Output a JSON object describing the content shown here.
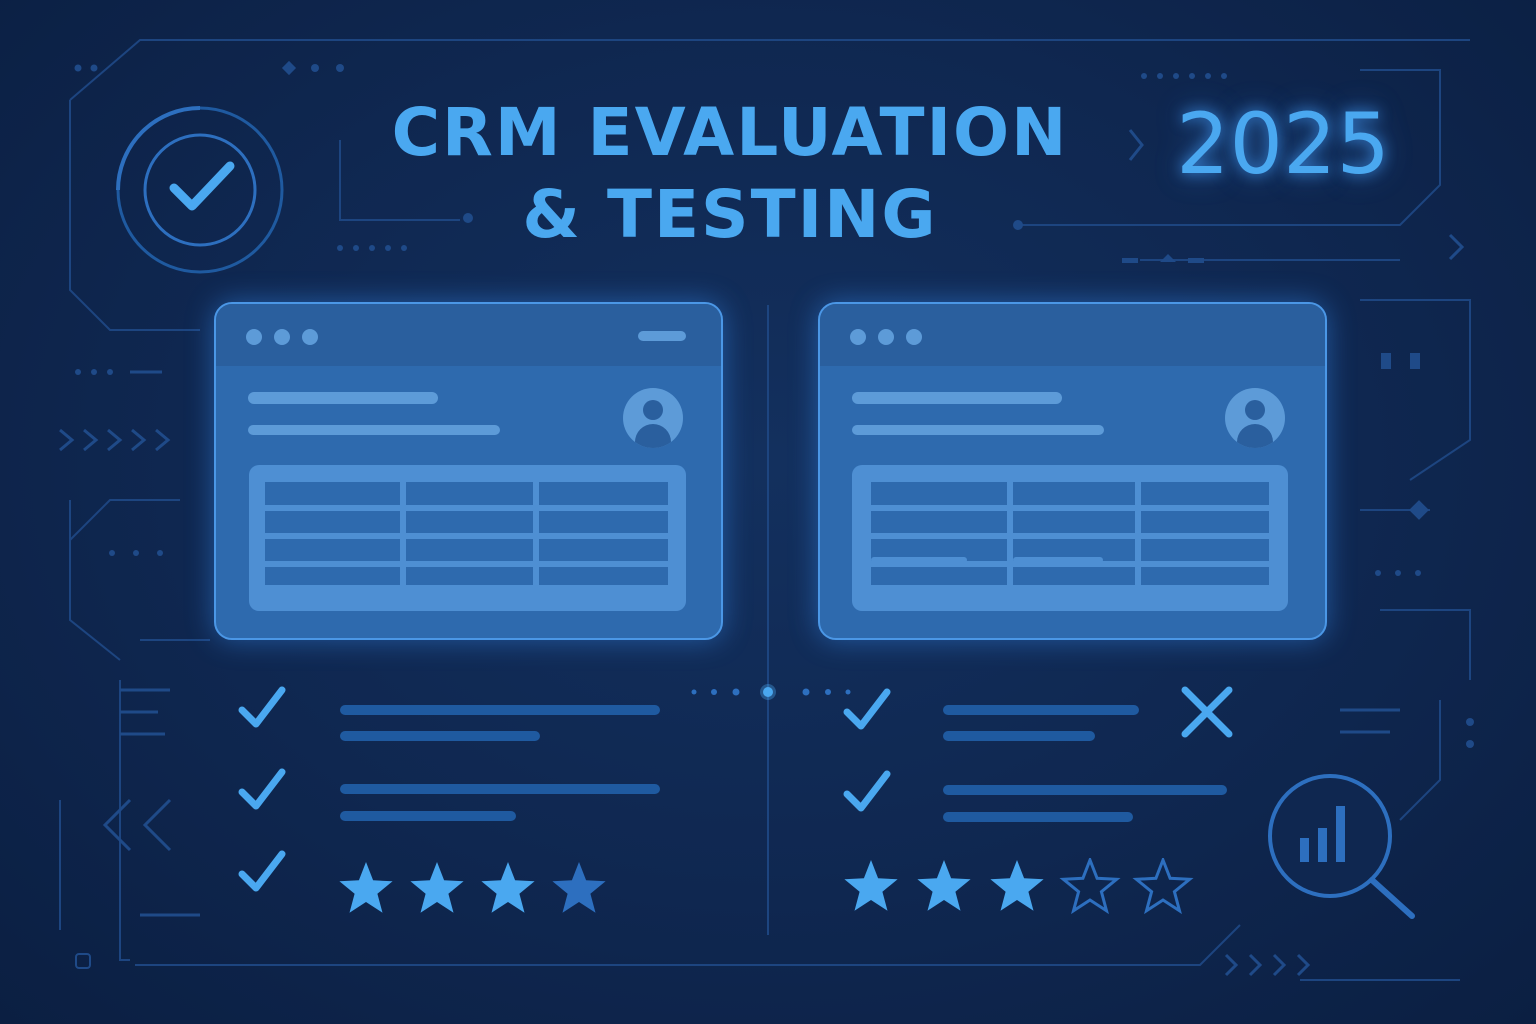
{
  "header": {
    "title_line1": "CRM EVALUATION",
    "title_line2": "& TESTING",
    "year": "2025"
  },
  "colors": {
    "background": "#0f2750",
    "accent": "#4aa8f0",
    "window_fill": "#2e6aae",
    "window_border": "#4b97e6",
    "line_dim": "#1f5aa0",
    "circuit": "#1d4580"
  },
  "icons": {
    "badge": "check-circle-icon",
    "analytics": "magnifier-chart-icon",
    "pass": "check-icon",
    "fail": "x-icon",
    "rating": "star-icon"
  },
  "comparison": {
    "left": {
      "results": [
        "pass",
        "pass",
        "pass"
      ],
      "rating": 4,
      "rating_max": 4
    },
    "right": {
      "results": [
        "pass",
        "pass"
      ],
      "flagged": true,
      "rating": 3,
      "rating_max": 5
    }
  }
}
